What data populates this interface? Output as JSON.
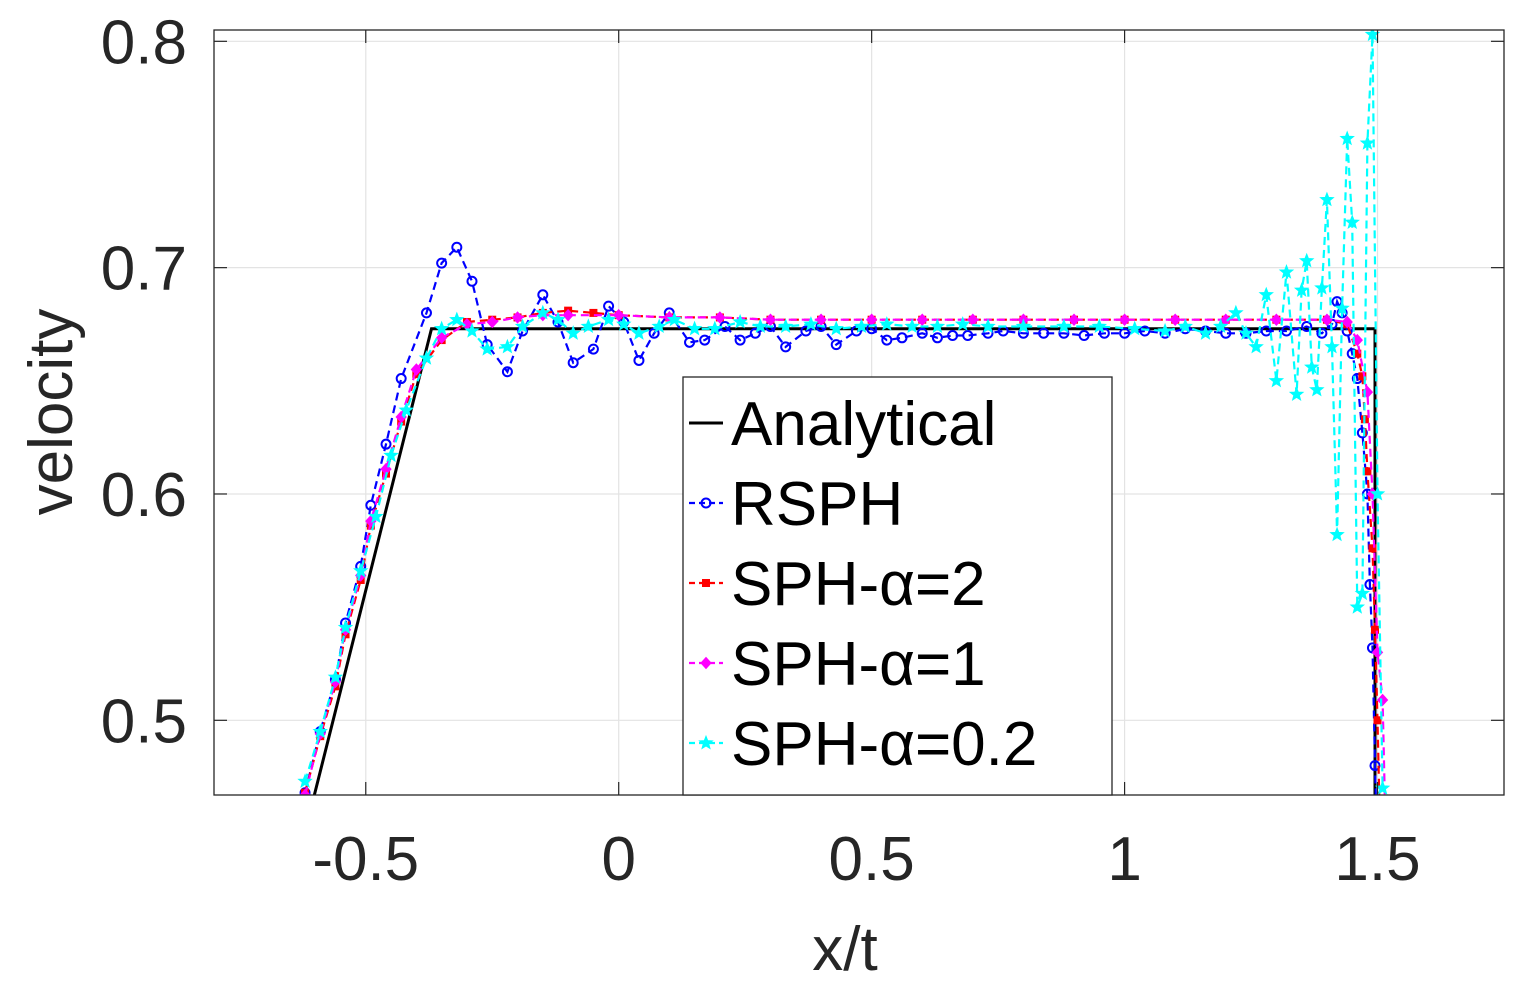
{
  "chart_data": {
    "type": "line",
    "xlabel": "x/t",
    "ylabel": "velocity",
    "xlim": [
      -0.8,
      1.75
    ],
    "ylim": [
      0.467,
      0.805
    ],
    "grid": true,
    "legend_position": "bottom-center",
    "x_ticks": [
      {
        "value": -0.5,
        "label": "-0.5"
      },
      {
        "value": 0,
        "label": "0"
      },
      {
        "value": 0.5,
        "label": "0.5"
      },
      {
        "value": 1,
        "label": "1"
      },
      {
        "value": 1.5,
        "label": "1.5"
      }
    ],
    "y_ticks": [
      {
        "value": 0.5,
        "label": "0.5"
      },
      {
        "value": 0.6,
        "label": "0.6"
      },
      {
        "value": 0.7,
        "label": "0.7"
      },
      {
        "value": 0.8,
        "label": "0.8"
      }
    ],
    "series": [
      {
        "name": "Analytical",
        "color": "#000000",
        "dash": "",
        "marker": "none",
        "points": [
          [
            -0.632,
            0.44
          ],
          [
            -0.37,
            0.673
          ],
          [
            1.495,
            0.673
          ],
          [
            1.495,
            0.43
          ]
        ]
      },
      {
        "name": "RSPH",
        "color": "#0000ff",
        "dash": "8,5",
        "marker": "circle",
        "points": [
          [
            -0.62,
            0.468
          ],
          [
            -0.59,
            0.495
          ],
          [
            -0.56,
            0.518
          ],
          [
            -0.54,
            0.543
          ],
          [
            -0.51,
            0.568
          ],
          [
            -0.49,
            0.595
          ],
          [
            -0.46,
            0.622
          ],
          [
            -0.43,
            0.651
          ],
          [
            -0.38,
            0.68
          ],
          [
            -0.35,
            0.702
          ],
          [
            -0.32,
            0.709
          ],
          [
            -0.29,
            0.694
          ],
          [
            -0.26,
            0.666
          ],
          [
            -0.22,
            0.654
          ],
          [
            -0.19,
            0.672
          ],
          [
            -0.15,
            0.688
          ],
          [
            -0.12,
            0.676
          ],
          [
            -0.09,
            0.658
          ],
          [
            -0.05,
            0.664
          ],
          [
            -0.02,
            0.683
          ],
          [
            0.01,
            0.676
          ],
          [
            0.04,
            0.659
          ],
          [
            0.07,
            0.671
          ],
          [
            0.1,
            0.68
          ],
          [
            0.14,
            0.667
          ],
          [
            0.17,
            0.668
          ],
          [
            0.21,
            0.674
          ],
          [
            0.24,
            0.668
          ],
          [
            0.27,
            0.671
          ],
          [
            0.3,
            0.674
          ],
          [
            0.33,
            0.665
          ],
          [
            0.37,
            0.672
          ],
          [
            0.4,
            0.674
          ],
          [
            0.43,
            0.666
          ],
          [
            0.47,
            0.672
          ],
          [
            0.5,
            0.673
          ],
          [
            0.53,
            0.668
          ],
          [
            0.56,
            0.669
          ],
          [
            0.6,
            0.671
          ],
          [
            0.63,
            0.669
          ],
          [
            0.66,
            0.67
          ],
          [
            0.69,
            0.67
          ],
          [
            0.73,
            0.671
          ],
          [
            0.76,
            0.672
          ],
          [
            0.8,
            0.671
          ],
          [
            0.84,
            0.671
          ],
          [
            0.88,
            0.671
          ],
          [
            0.92,
            0.67
          ],
          [
            0.96,
            0.671
          ],
          [
            1.0,
            0.671
          ],
          [
            1.04,
            0.672
          ],
          [
            1.08,
            0.671
          ],
          [
            1.12,
            0.673
          ],
          [
            1.16,
            0.672
          ],
          [
            1.2,
            0.671
          ],
          [
            1.24,
            0.671
          ],
          [
            1.28,
            0.672
          ],
          [
            1.32,
            0.672
          ],
          [
            1.36,
            0.674
          ],
          [
            1.39,
            0.671
          ],
          [
            1.41,
            0.675
          ],
          [
            1.42,
            0.685
          ],
          [
            1.43,
            0.68
          ],
          [
            1.44,
            0.672
          ],
          [
            1.45,
            0.662
          ],
          [
            1.46,
            0.651
          ],
          [
            1.47,
            0.627
          ],
          [
            1.48,
            0.6
          ],
          [
            1.485,
            0.56
          ],
          [
            1.49,
            0.532
          ],
          [
            1.495,
            0.48
          ],
          [
            1.5,
            0.44
          ]
        ]
      },
      {
        "name": "SPH-α=2",
        "color": "#ff0000",
        "dash": "8,5",
        "marker": "square",
        "points": [
          [
            -0.62,
            0.468
          ],
          [
            -0.59,
            0.493
          ],
          [
            -0.56,
            0.515
          ],
          [
            -0.54,
            0.538
          ],
          [
            -0.51,
            0.562
          ],
          [
            -0.49,
            0.586
          ],
          [
            -0.46,
            0.609
          ],
          [
            -0.43,
            0.632
          ],
          [
            -0.4,
            0.653
          ],
          [
            -0.35,
            0.668
          ],
          [
            -0.3,
            0.676
          ],
          [
            -0.25,
            0.677
          ],
          [
            -0.2,
            0.678
          ],
          [
            -0.15,
            0.68
          ],
          [
            -0.1,
            0.681
          ],
          [
            -0.05,
            0.68
          ],
          [
            0.0,
            0.679
          ],
          [
            0.1,
            0.678
          ],
          [
            0.2,
            0.678
          ],
          [
            0.3,
            0.677
          ],
          [
            0.4,
            0.677
          ],
          [
            0.5,
            0.677
          ],
          [
            0.6,
            0.677
          ],
          [
            0.7,
            0.677
          ],
          [
            0.8,
            0.677
          ],
          [
            0.9,
            0.677
          ],
          [
            1.0,
            0.677
          ],
          [
            1.1,
            0.677
          ],
          [
            1.2,
            0.677
          ],
          [
            1.3,
            0.677
          ],
          [
            1.4,
            0.677
          ],
          [
            1.44,
            0.675
          ],
          [
            1.46,
            0.662
          ],
          [
            1.47,
            0.652
          ],
          [
            1.475,
            0.633
          ],
          [
            1.48,
            0.61
          ],
          [
            1.49,
            0.576
          ],
          [
            1.495,
            0.54
          ],
          [
            1.5,
            0.5
          ],
          [
            1.505,
            0.45
          ]
        ]
      },
      {
        "name": "SPH-α=1",
        "color": "#ff00ff",
        "dash": "8,5",
        "marker": "diamond",
        "points": [
          [
            -0.62,
            0.467
          ],
          [
            -0.59,
            0.494
          ],
          [
            -0.56,
            0.517
          ],
          [
            -0.54,
            0.54
          ],
          [
            -0.51,
            0.564
          ],
          [
            -0.49,
            0.588
          ],
          [
            -0.46,
            0.611
          ],
          [
            -0.43,
            0.634
          ],
          [
            -0.4,
            0.655
          ],
          [
            -0.35,
            0.669
          ],
          [
            -0.3,
            0.675
          ],
          [
            -0.25,
            0.676
          ],
          [
            -0.2,
            0.678
          ],
          [
            -0.15,
            0.679
          ],
          [
            -0.1,
            0.679
          ],
          [
            0.0,
            0.679
          ],
          [
            0.1,
            0.678
          ],
          [
            0.2,
            0.678
          ],
          [
            0.3,
            0.677
          ],
          [
            0.4,
            0.677
          ],
          [
            0.5,
            0.677
          ],
          [
            0.6,
            0.677
          ],
          [
            0.7,
            0.677
          ],
          [
            0.8,
            0.677
          ],
          [
            0.9,
            0.677
          ],
          [
            1.0,
            0.677
          ],
          [
            1.1,
            0.677
          ],
          [
            1.2,
            0.677
          ],
          [
            1.3,
            0.677
          ],
          [
            1.4,
            0.677
          ],
          [
            1.44,
            0.676
          ],
          [
            1.46,
            0.668
          ],
          [
            1.48,
            0.645
          ],
          [
            1.49,
            0.6
          ],
          [
            1.5,
            0.53
          ],
          [
            1.51,
            0.509
          ],
          [
            1.515,
            0.46
          ]
        ]
      },
      {
        "name": "SPH-α=0.2",
        "color": "#00ffff",
        "dash": "8,5",
        "marker": "star",
        "points": [
          [
            -0.62,
            0.473
          ],
          [
            -0.59,
            0.495
          ],
          [
            -0.56,
            0.519
          ],
          [
            -0.54,
            0.541
          ],
          [
            -0.51,
            0.566
          ],
          [
            -0.48,
            0.59
          ],
          [
            -0.45,
            0.617
          ],
          [
            -0.42,
            0.637
          ],
          [
            -0.38,
            0.66
          ],
          [
            -0.35,
            0.673
          ],
          [
            -0.32,
            0.677
          ],
          [
            -0.29,
            0.672
          ],
          [
            -0.26,
            0.664
          ],
          [
            -0.22,
            0.665
          ],
          [
            -0.19,
            0.674
          ],
          [
            -0.15,
            0.68
          ],
          [
            -0.12,
            0.677
          ],
          [
            -0.09,
            0.671
          ],
          [
            -0.06,
            0.674
          ],
          [
            -0.02,
            0.677
          ],
          [
            0.01,
            0.675
          ],
          [
            0.04,
            0.671
          ],
          [
            0.08,
            0.674
          ],
          [
            0.11,
            0.677
          ],
          [
            0.15,
            0.673
          ],
          [
            0.19,
            0.673
          ],
          [
            0.24,
            0.676
          ],
          [
            0.28,
            0.674
          ],
          [
            0.33,
            0.674
          ],
          [
            0.38,
            0.675
          ],
          [
            0.43,
            0.673
          ],
          [
            0.48,
            0.674
          ],
          [
            0.53,
            0.675
          ],
          [
            0.58,
            0.674
          ],
          [
            0.63,
            0.674
          ],
          [
            0.68,
            0.675
          ],
          [
            0.73,
            0.674
          ],
          [
            0.8,
            0.674
          ],
          [
            0.88,
            0.674
          ],
          [
            0.95,
            0.674
          ],
          [
            1.02,
            0.673
          ],
          [
            1.08,
            0.672
          ],
          [
            1.12,
            0.674
          ],
          [
            1.16,
            0.671
          ],
          [
            1.19,
            0.674
          ],
          [
            1.22,
            0.68
          ],
          [
            1.24,
            0.671
          ],
          [
            1.26,
            0.665
          ],
          [
            1.28,
            0.688
          ],
          [
            1.3,
            0.65
          ],
          [
            1.32,
            0.698
          ],
          [
            1.34,
            0.644
          ],
          [
            1.35,
            0.69
          ],
          [
            1.36,
            0.703
          ],
          [
            1.37,
            0.656
          ],
          [
            1.38,
            0.646
          ],
          [
            1.39,
            0.691
          ],
          [
            1.4,
            0.73
          ],
          [
            1.41,
            0.665
          ],
          [
            1.42,
            0.582
          ],
          [
            1.43,
            0.682
          ],
          [
            1.44,
            0.757
          ],
          [
            1.45,
            0.72
          ],
          [
            1.46,
            0.55
          ],
          [
            1.47,
            0.556
          ],
          [
            1.48,
            0.755
          ],
          [
            1.49,
            0.803
          ],
          [
            1.5,
            0.6
          ],
          [
            1.51,
            0.47
          ]
        ]
      }
    ]
  }
}
